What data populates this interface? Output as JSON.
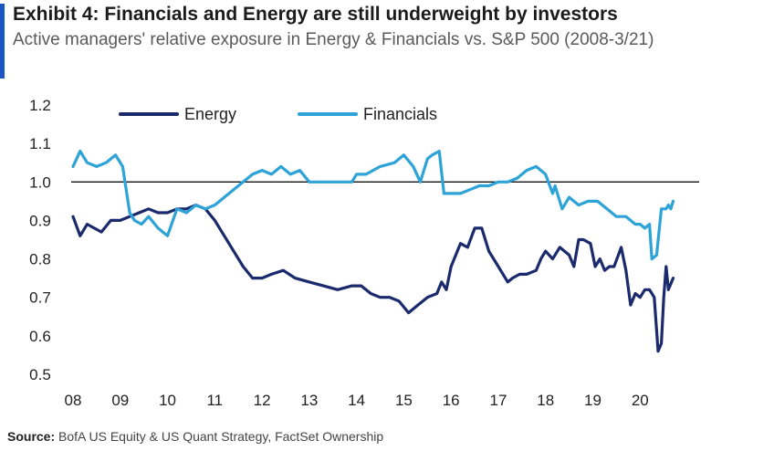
{
  "title": "Exhibit 4: Financials and Energy are still underweight by investors",
  "subtitle": "Active managers' relative exposure in Energy & Financials vs. S&P 500 (2008-3/21)",
  "source_label": "Source:",
  "source_text": "BofA US Equity & US Quant Strategy, FactSet Ownership",
  "colors": {
    "energy": "#1a2a6c",
    "financials": "#2ea3d8",
    "reference": "#111111",
    "accent": "#1a56c4"
  },
  "chart_data": {
    "type": "line",
    "title": "Exhibit 4: Financials and Energy are still underweight by investors",
    "subtitle": "Active managers' relative exposure in Energy & Financials vs. S&P 500 (2008-3/21)",
    "xlabel": "",
    "ylabel": "",
    "x_ticks": [
      "08",
      "09",
      "10",
      "11",
      "12",
      "13",
      "14",
      "15",
      "16",
      "17",
      "18",
      "19",
      "20"
    ],
    "x_tick_values": [
      2008,
      2009,
      2010,
      2011,
      2012,
      2013,
      2014,
      2015,
      2016,
      2017,
      2018,
      2019,
      2020
    ],
    "xlim": [
      2008,
      2021.25
    ],
    "y_ticks": [
      "0.5",
      "0.6",
      "0.7",
      "0.8",
      "0.9",
      "1.0",
      "1.1",
      "1.2"
    ],
    "y_tick_values": [
      0.5,
      0.6,
      0.7,
      0.8,
      0.9,
      1.0,
      1.1,
      1.2
    ],
    "ylim": [
      0.5,
      1.2
    ],
    "reference_line": 1.0,
    "grid": false,
    "legend_position": "top",
    "series": [
      {
        "name": "Energy",
        "color": "#1a2a6c",
        "x": [
          2008.0,
          2008.15,
          2008.3,
          2008.45,
          2008.6,
          2008.8,
          2009.0,
          2009.2,
          2009.4,
          2009.6,
          2009.8,
          2010.0,
          2010.2,
          2010.4,
          2010.6,
          2010.8,
          2011.0,
          2011.2,
          2011.4,
          2011.6,
          2011.8,
          2012.0,
          2012.2,
          2012.45,
          2012.7,
          2013.0,
          2013.3,
          2013.6,
          2013.9,
          2014.1,
          2014.3,
          2014.5,
          2014.7,
          2014.9,
          2015.1,
          2015.3,
          2015.5,
          2015.7,
          2015.8,
          2015.9,
          2016.0,
          2016.2,
          2016.35,
          2016.5,
          2016.65,
          2016.8,
          2017.0,
          2017.2,
          2017.3,
          2017.45,
          2017.6,
          2017.8,
          2017.9,
          2018.0,
          2018.15,
          2018.3,
          2018.5,
          2018.6,
          2018.7,
          2018.8,
          2018.95,
          2019.05,
          2019.15,
          2019.25,
          2019.35,
          2019.45,
          2019.6,
          2019.7,
          2019.8,
          2019.9,
          2020.0,
          2020.1,
          2020.2,
          2020.3,
          2020.38,
          2020.45,
          2020.5,
          2020.55,
          2020.6,
          2020.7
        ],
        "values": [
          0.91,
          0.86,
          0.89,
          0.88,
          0.87,
          0.9,
          0.9,
          0.91,
          0.92,
          0.93,
          0.92,
          0.92,
          0.93,
          0.93,
          0.94,
          0.93,
          0.9,
          0.86,
          0.82,
          0.78,
          0.75,
          0.75,
          0.76,
          0.77,
          0.75,
          0.74,
          0.73,
          0.72,
          0.73,
          0.73,
          0.71,
          0.7,
          0.7,
          0.69,
          0.66,
          0.68,
          0.7,
          0.71,
          0.74,
          0.72,
          0.78,
          0.84,
          0.83,
          0.88,
          0.88,
          0.82,
          0.78,
          0.74,
          0.75,
          0.76,
          0.76,
          0.77,
          0.8,
          0.82,
          0.8,
          0.83,
          0.81,
          0.78,
          0.85,
          0.85,
          0.84,
          0.78,
          0.8,
          0.77,
          0.78,
          0.78,
          0.83,
          0.77,
          0.68,
          0.71,
          0.7,
          0.72,
          0.72,
          0.7,
          0.56,
          0.58,
          0.7,
          0.78,
          0.72,
          0.75
        ]
      },
      {
        "name": "Financials",
        "color": "#2ea3d8",
        "x": [
          2008.0,
          2008.15,
          2008.3,
          2008.5,
          2008.7,
          2008.9,
          2009.05,
          2009.2,
          2009.3,
          2009.45,
          2009.6,
          2009.8,
          2010.0,
          2010.2,
          2010.4,
          2010.6,
          2010.8,
          2011.0,
          2011.2,
          2011.4,
          2011.6,
          2011.8,
          2012.0,
          2012.2,
          2012.4,
          2012.6,
          2012.8,
          2013.0,
          2013.3,
          2013.6,
          2013.9,
          2014.0,
          2014.2,
          2014.5,
          2014.8,
          2015.0,
          2015.2,
          2015.35,
          2015.5,
          2015.6,
          2015.75,
          2015.85,
          2016.0,
          2016.2,
          2016.4,
          2016.6,
          2016.8,
          2017.0,
          2017.2,
          2017.4,
          2017.6,
          2017.8,
          2018.0,
          2018.15,
          2018.2,
          2018.35,
          2018.5,
          2018.7,
          2018.9,
          2019.1,
          2019.3,
          2019.5,
          2019.7,
          2019.9,
          2020.0,
          2020.1,
          2020.2,
          2020.25,
          2020.35,
          2020.45,
          2020.55,
          2020.6,
          2020.65,
          2020.7
        ],
        "values": [
          1.04,
          1.08,
          1.05,
          1.04,
          1.05,
          1.07,
          1.04,
          0.92,
          0.9,
          0.89,
          0.91,
          0.88,
          0.86,
          0.93,
          0.92,
          0.94,
          0.93,
          0.94,
          0.96,
          0.98,
          1.0,
          1.02,
          1.03,
          1.02,
          1.04,
          1.02,
          1.03,
          1.0,
          1.0,
          1.0,
          1.0,
          1.02,
          1.02,
          1.04,
          1.05,
          1.07,
          1.04,
          1.0,
          1.06,
          1.07,
          1.08,
          0.97,
          0.97,
          0.97,
          0.98,
          0.99,
          0.99,
          1.0,
          1.0,
          1.01,
          1.03,
          1.04,
          1.02,
          0.97,
          0.99,
          0.93,
          0.96,
          0.94,
          0.95,
          0.95,
          0.93,
          0.91,
          0.91,
          0.89,
          0.89,
          0.88,
          0.89,
          0.8,
          0.81,
          0.93,
          0.93,
          0.94,
          0.93,
          0.95
        ]
      }
    ]
  }
}
